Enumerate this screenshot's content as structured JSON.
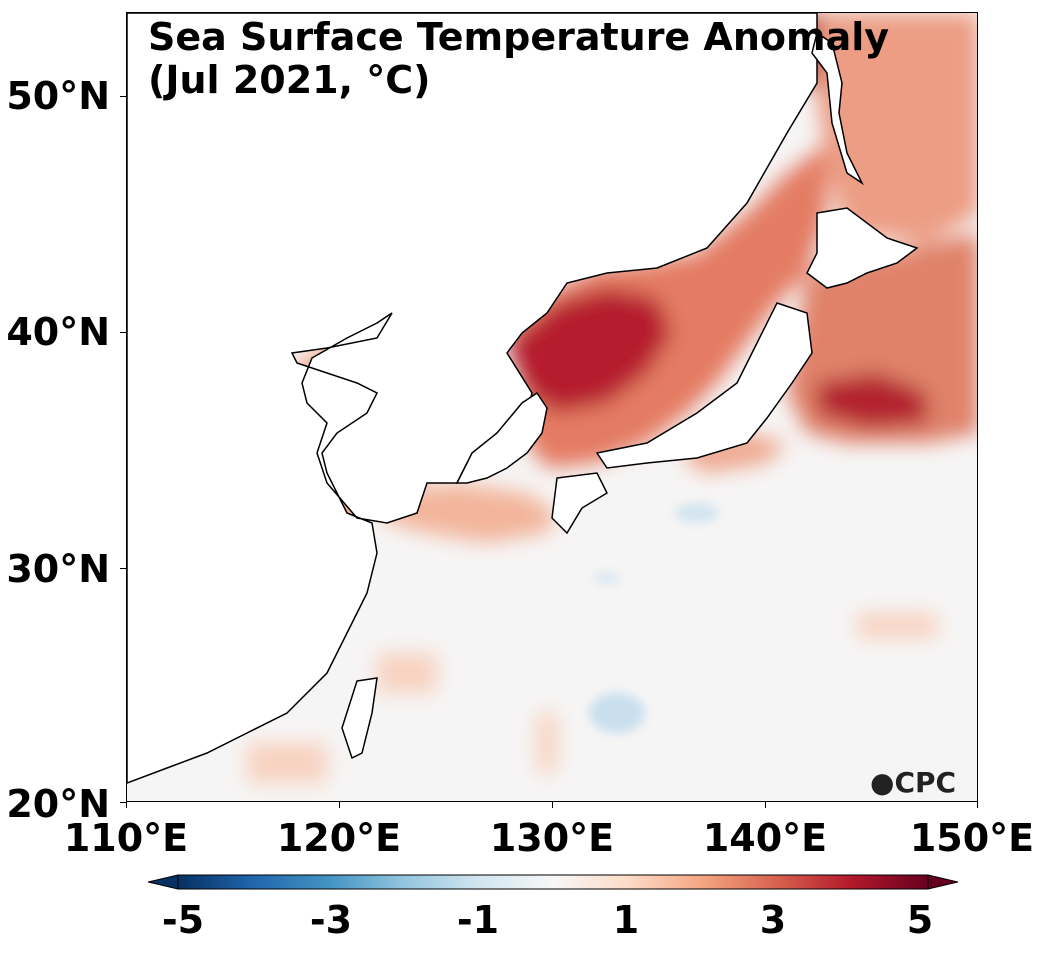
{
  "title_line1": "Sea Surface Temperature Anomaly",
  "title_line2": "(Jul 2021, °C)",
  "lat_labels": [
    "50°N",
    "40°N",
    "30°N",
    "20°N"
  ],
  "lon_labels": [
    "110°E",
    "120°E",
    "130°E",
    "140°E",
    "150°E"
  ],
  "colorbar_labels": [
    "-5",
    "-3",
    "-1",
    "1",
    "3",
    "5"
  ],
  "colorbar_range": [
    -5,
    5
  ],
  "colorbar_colors": [
    "#053061",
    "#2166ac",
    "#4393c3",
    "#92c5de",
    "#d1e5f0",
    "#f7f7f7",
    "#fddbc7",
    "#f4a582",
    "#d6604d",
    "#b2182b",
    "#67001f"
  ],
  "logo_text": "CPC",
  "land_color": "#ffffff",
  "coast_color": "#000000"
}
